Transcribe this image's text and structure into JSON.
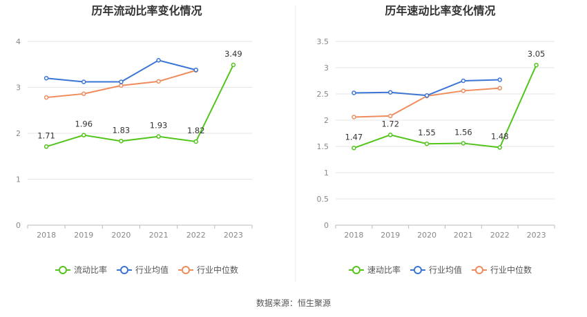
{
  "source": "数据来源：恒生聚源",
  "chart_data": [
    {
      "type": "line",
      "title": "历年流动比率变化情况",
      "x": [
        "2018",
        "2019",
        "2020",
        "2021",
        "2022",
        "2023"
      ],
      "ylim": [
        0,
        4
      ],
      "yticks": [
        "0",
        "1",
        "2",
        "3",
        "4"
      ],
      "grid": true,
      "legend_position": "bottom",
      "series": [
        {
          "name": "流动比率",
          "color": "#52c41a",
          "values": [
            1.71,
            1.96,
            1.83,
            1.93,
            1.82,
            3.49
          ],
          "labels": [
            "1.71",
            "1.96",
            "1.83",
            "1.93",
            "1.82",
            "3.49"
          ]
        },
        {
          "name": "行业均值",
          "color": "#3a75d6",
          "values": [
            3.2,
            3.12,
            3.12,
            3.59,
            3.38,
            null
          ]
        },
        {
          "name": "行业中位数",
          "color": "#f08b5c",
          "values": [
            2.78,
            2.86,
            3.04,
            3.13,
            3.37,
            null
          ]
        }
      ]
    },
    {
      "type": "line",
      "title": "历年速动比率变化情况",
      "x": [
        "2018",
        "2019",
        "2020",
        "2021",
        "2022",
        "2023"
      ],
      "ylim": [
        0,
        3.5
      ],
      "yticks": [
        "0",
        "0.5",
        "1",
        "1.5",
        "2",
        "2.5",
        "3",
        "3.5"
      ],
      "grid": true,
      "legend_position": "bottom",
      "series": [
        {
          "name": "速动比率",
          "color": "#52c41a",
          "values": [
            1.47,
            1.72,
            1.55,
            1.56,
            1.48,
            3.05
          ],
          "labels": [
            "1.47",
            "1.72",
            "1.55",
            "1.56",
            "1.48",
            "3.05"
          ]
        },
        {
          "name": "行业均值",
          "color": "#3a75d6",
          "values": [
            2.52,
            2.53,
            2.47,
            2.75,
            2.77,
            null
          ]
        },
        {
          "name": "行业中位数",
          "color": "#f08b5c",
          "values": [
            2.06,
            2.08,
            2.46,
            2.56,
            2.61,
            null
          ]
        }
      ]
    }
  ]
}
